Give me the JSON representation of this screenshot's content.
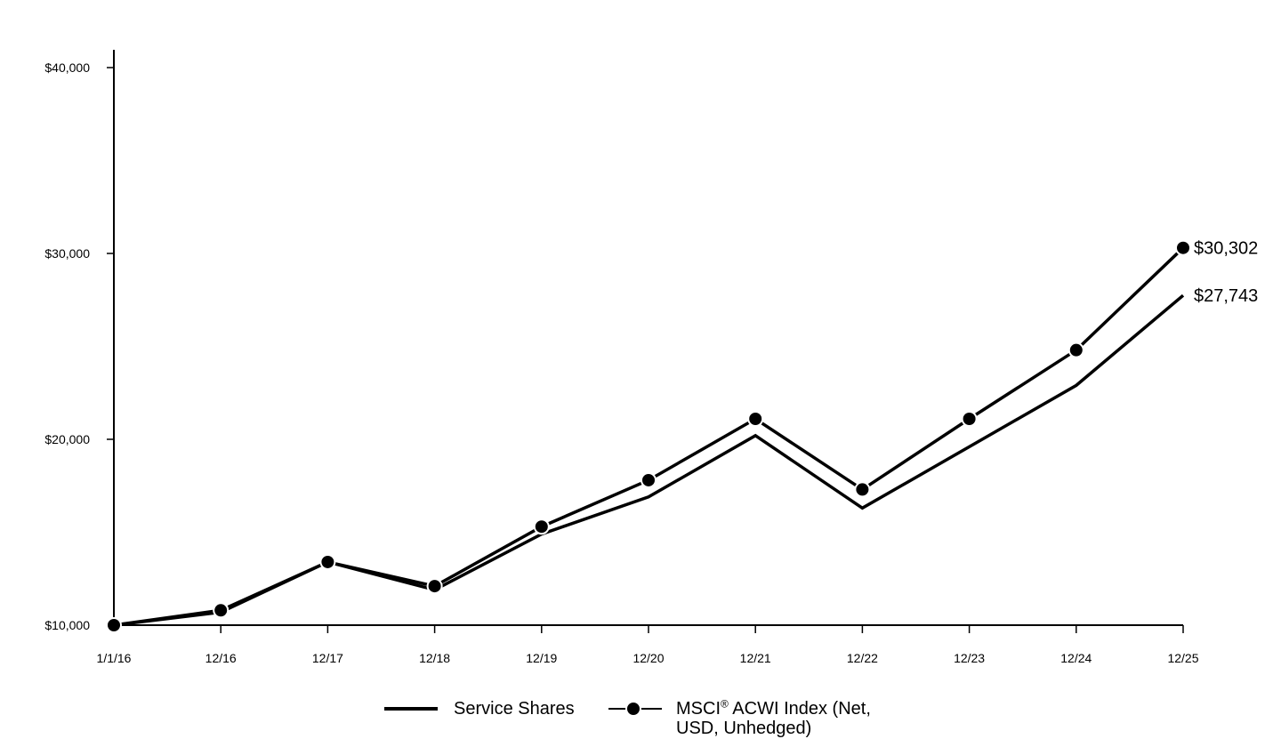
{
  "chart_data": {
    "type": "line",
    "title": "",
    "xlabel": "",
    "ylabel": "",
    "categories": [
      "1/1/16",
      "12/16",
      "12/17",
      "12/18",
      "12/19",
      "12/20",
      "12/21",
      "12/22",
      "12/23",
      "12/24",
      "12/25"
    ],
    "y_ticks": [
      "$10,000",
      "$20,000",
      "$30,000",
      "$40,000"
    ],
    "ylim": [
      10000,
      40000
    ],
    "grid": false,
    "legend_position": "bottom",
    "series": [
      {
        "name": "Service Shares",
        "values": [
          10000,
          10700,
          13400,
          11900,
          14900,
          16900,
          20200,
          16300,
          19600,
          22900,
          27743
        ],
        "markers": false,
        "color": "#000000",
        "end_label": "$27,743"
      },
      {
        "name": "MSCI® ACWI Index (Net, USD, Unhedged)",
        "values": [
          10000,
          10800,
          13400,
          12100,
          15300,
          17800,
          21100,
          17300,
          21100,
          24800,
          30302
        ],
        "markers": true,
        "color": "#000000",
        "end_label": "$30,302"
      }
    ]
  },
  "legend": {
    "item0": "Service Shares",
    "item1_prefix": "MSCI",
    "item1_sup": "®",
    "item1_suffix": " ACWI Index (Net, USD, Unhedged)"
  }
}
